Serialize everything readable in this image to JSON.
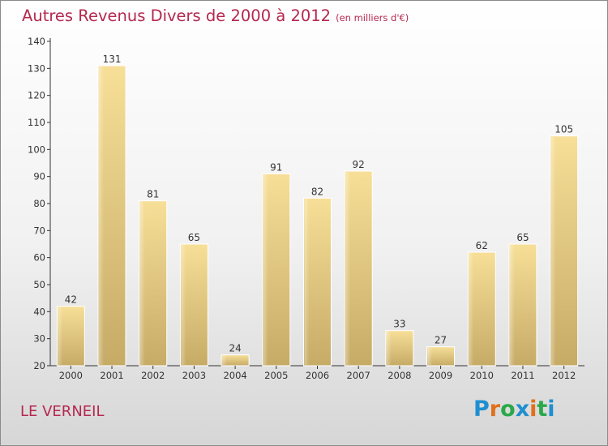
{
  "title": "Autres Revenus Divers de 2000 à 2012",
  "unit": "(en milliers d'€)",
  "location": "LE VERNEIL",
  "logo": {
    "letters": [
      "P",
      "r",
      "o",
      "x",
      "i",
      "t",
      "i"
    ],
    "colors": [
      "#1f8fd0",
      "#e0701a",
      "#2aa84a",
      "#1f8fd0",
      "#e0701a",
      "#2aa84a",
      "#1f8fd0"
    ]
  },
  "colors": {
    "title": "#b5284f",
    "bar_top": "#f7df98",
    "bar_bottom": "#c6ab66"
  },
  "chart_data": {
    "type": "bar",
    "categories": [
      "2000",
      "2001",
      "2002",
      "2003",
      "2004",
      "2005",
      "2006",
      "2007",
      "2008",
      "2009",
      "2010",
      "2011",
      "2012"
    ],
    "values": [
      42,
      131,
      81,
      65,
      24,
      91,
      82,
      92,
      33,
      27,
      62,
      65,
      105
    ],
    "ylim": [
      20,
      140
    ],
    "yticks": [
      20,
      30,
      40,
      50,
      60,
      70,
      80,
      90,
      100,
      110,
      120,
      130,
      140
    ],
    "title": "Autres Revenus Divers de 2000 à 2012",
    "xlabel": "",
    "ylabel": "",
    "grid": false,
    "legend": "none"
  }
}
